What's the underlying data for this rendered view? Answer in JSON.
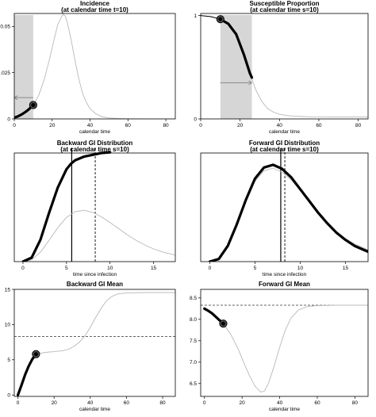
{
  "chart_data": [
    {
      "type": "line",
      "title": "Incidence",
      "subtitle": "(at calendar time t=10)",
      "xlabel": "calendar time",
      "ylabel": "",
      "xlim": [
        0,
        85
      ],
      "ylim": [
        0,
        0.057
      ],
      "xticks": [
        "0",
        "20",
        "40",
        "60",
        "80"
      ],
      "yticks": [
        "0",
        "0.025",
        "0.05"
      ],
      "shaded_region": [
        0,
        10
      ],
      "highlight_point": {
        "x": 10,
        "y": 0.0075
      },
      "series": [
        {
          "style": "grey-thin",
          "x": [
            0,
            5,
            10,
            13,
            16,
            19,
            21,
            23,
            25,
            26,
            27,
            28,
            30,
            32,
            34,
            36,
            38,
            40,
            43,
            46,
            50,
            55,
            60,
            70,
            85
          ],
          "y": [
            0.0007,
            0.0028,
            0.0075,
            0.013,
            0.022,
            0.034,
            0.043,
            0.051,
            0.0555,
            0.0565,
            0.0555,
            0.052,
            0.043,
            0.032,
            0.022,
            0.014,
            0.009,
            0.0055,
            0.0028,
            0.0013,
            0.0005,
            0.0002,
            0.0001,
            0.0,
            0.0
          ]
        },
        {
          "style": "black-thick",
          "x": [
            0,
            2,
            4,
            6,
            8,
            10
          ],
          "y": [
            0.0007,
            0.0014,
            0.0025,
            0.0038,
            0.0055,
            0.0075
          ]
        }
      ],
      "arrow": {
        "x_from": 10,
        "x_to": 0,
        "y": 0.0115
      }
    },
    {
      "type": "line",
      "title": "Susceptible Proportion",
      "subtitle": "(at calendar time s=10)",
      "xlabel": "calendar time",
      "ylabel": "",
      "xlim": [
        0,
        85
      ],
      "ylim": [
        0,
        1.02
      ],
      "xticks": [
        "0",
        "20",
        "40",
        "60",
        "80"
      ],
      "yticks": [
        "0",
        "1"
      ],
      "shaded_region": [
        10,
        26
      ],
      "highlight_point": {
        "x": 10,
        "y": 0.965
      },
      "series": [
        {
          "style": "grey-thin",
          "x": [
            0,
            5,
            10,
            14,
            18,
            22,
            25,
            28,
            31,
            34,
            37,
            40,
            44,
            48,
            55,
            65,
            85
          ],
          "y": [
            1.0,
            0.99,
            0.965,
            0.92,
            0.82,
            0.62,
            0.44,
            0.28,
            0.17,
            0.1,
            0.065,
            0.045,
            0.032,
            0.026,
            0.021,
            0.02,
            0.02
          ]
        },
        {
          "style": "black-thin",
          "x": [
            0,
            5,
            10
          ],
          "y": [
            1.0,
            0.99,
            0.965
          ]
        },
        {
          "style": "black-thick",
          "x": [
            10,
            14,
            18,
            22,
            25,
            26
          ],
          "y": [
            0.965,
            0.92,
            0.82,
            0.62,
            0.44,
            0.4
          ]
        }
      ],
      "arrow": {
        "x_from": 10,
        "x_to": 26,
        "y": 0.35
      }
    },
    {
      "type": "line",
      "title": "Backward GI Distribution",
      "subtitle": "(at calendar time s=10)",
      "xlabel": "time since infection",
      "ylabel": "",
      "xlim": [
        -1,
        17.5
      ],
      "ylim": [
        0,
        0.3
      ],
      "xticks": [
        "0",
        "5",
        "10",
        "15"
      ],
      "yticks": [],
      "vlines": [
        {
          "x": 5.6,
          "style": "solid"
        },
        {
          "x": 8.3,
          "style": "dashed"
        }
      ],
      "series": [
        {
          "style": "grey-thin",
          "x": [
            0,
            1,
            2,
            3,
            4,
            5,
            6,
            7,
            8,
            9,
            10,
            11,
            12,
            13,
            14,
            15,
            16,
            17.5
          ],
          "y": [
            0.0,
            0.005,
            0.026,
            0.059,
            0.094,
            0.122,
            0.138,
            0.142,
            0.136,
            0.124,
            0.108,
            0.091,
            0.074,
            0.059,
            0.046,
            0.035,
            0.027,
            0.018
          ]
        },
        {
          "style": "black-thick",
          "x": [
            0,
            1,
            2,
            3,
            4,
            5,
            5.5,
            6,
            7,
            8,
            9,
            10
          ],
          "y": [
            0.0,
            0.011,
            0.06,
            0.135,
            0.205,
            0.255,
            0.27,
            0.28,
            0.29,
            0.295,
            0.3,
            0.302
          ]
        }
      ]
    },
    {
      "type": "line",
      "title": "Forward GI Distribution",
      "subtitle": "(at calendar time s=10)",
      "xlabel": "time since infection",
      "ylabel": "",
      "xlim": [
        -1,
        17.5
      ],
      "ylim": [
        0,
        0.165
      ],
      "xticks": [
        "0",
        "5",
        "10",
        "15"
      ],
      "yticks": [],
      "vlines": [
        {
          "x": 7.85,
          "style": "solid"
        },
        {
          "x": 8.3,
          "style": "dashed"
        }
      ],
      "series": [
        {
          "style": "grey-thin",
          "x": [
            0,
            1,
            2,
            3,
            4,
            5,
            6,
            7,
            8,
            9,
            10,
            11,
            12,
            13,
            14,
            15,
            16,
            17.5
          ],
          "y": [
            0.0,
            0.005,
            0.026,
            0.059,
            0.094,
            0.122,
            0.138,
            0.142,
            0.136,
            0.124,
            0.108,
            0.091,
            0.074,
            0.059,
            0.046,
            0.035,
            0.027,
            0.018
          ]
        },
        {
          "style": "black-thick",
          "x": [
            0,
            1,
            2,
            3,
            4,
            5,
            6,
            7,
            8,
            9,
            10,
            11,
            12,
            13,
            14,
            15,
            16,
            17.5
          ],
          "y": [
            0.0,
            0.004,
            0.024,
            0.057,
            0.094,
            0.126,
            0.143,
            0.147,
            0.141,
            0.128,
            0.11,
            0.092,
            0.074,
            0.058,
            0.044,
            0.033,
            0.024,
            0.015
          ]
        }
      ]
    },
    {
      "type": "line",
      "title": "Backward GI Mean",
      "xlabel": "calendar time",
      "ylabel": "",
      "xlim": [
        -2,
        87
      ],
      "ylim": [
        -0.2,
        15
      ],
      "xticks": [
        "0",
        "20",
        "40",
        "60",
        "80"
      ],
      "yticks": [
        "0",
        "5",
        "10",
        "15"
      ],
      "hline": {
        "y": 8.3,
        "style": "dashed"
      },
      "highlight_point": {
        "x": 10,
        "y": 5.8
      },
      "series": [
        {
          "style": "grey-thin",
          "x": [
            0,
            2,
            4,
            6,
            8,
            10,
            15,
            20,
            25,
            28,
            31,
            34,
            37,
            40,
            43,
            46,
            49,
            52,
            55,
            60,
            70,
            87
          ],
          "y": [
            0.0,
            1.4,
            2.9,
            4.1,
            5.1,
            5.8,
            6.05,
            6.15,
            6.3,
            6.5,
            6.9,
            7.5,
            8.4,
            9.6,
            11.0,
            12.3,
            13.4,
            14.0,
            14.35,
            14.5,
            14.55,
            14.55
          ]
        },
        {
          "style": "black-thick",
          "x": [
            0,
            2,
            4,
            6,
            8,
            10
          ],
          "y": [
            0.0,
            1.4,
            2.9,
            4.1,
            5.1,
            5.8
          ]
        }
      ]
    },
    {
      "type": "line",
      "title": "Forward GI Mean",
      "xlabel": "calendar time",
      "ylabel": "",
      "xlim": [
        -2,
        87
      ],
      "ylim": [
        6.2,
        8.7
      ],
      "xticks": [
        "0",
        "20",
        "40",
        "60",
        "80"
      ],
      "yticks": [
        "6.5",
        "7.0",
        "7.5",
        "8.0",
        "8.5"
      ],
      "hline": {
        "y": 8.33,
        "style": "dashed"
      },
      "highlight_point": {
        "x": 10,
        "y": 7.9
      },
      "series": [
        {
          "style": "grey-thin",
          "x": [
            0,
            5,
            10,
            14,
            18,
            21,
            24,
            27,
            30,
            32,
            34,
            37,
            40,
            43,
            46,
            50,
            55,
            60,
            70,
            87
          ],
          "y": [
            8.25,
            8.12,
            7.9,
            7.65,
            7.3,
            6.98,
            6.68,
            6.43,
            6.3,
            6.33,
            6.5,
            6.9,
            7.35,
            7.75,
            8.03,
            8.22,
            8.3,
            8.32,
            8.33,
            8.33
          ]
        },
        {
          "style": "black-thick",
          "x": [
            0,
            2,
            4,
            6,
            8,
            10
          ],
          "y": [
            8.25,
            8.2,
            8.14,
            8.06,
            7.98,
            7.9
          ]
        }
      ]
    }
  ]
}
